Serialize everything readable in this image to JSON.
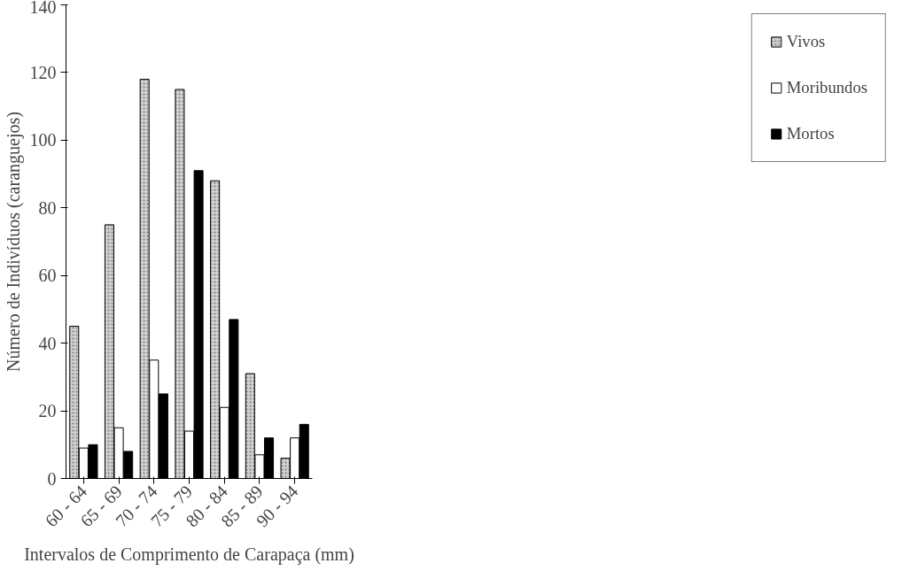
{
  "chart_data": {
    "type": "bar",
    "xlabel": "Intervalos de Comprimento de Carapaça (mm)",
    "ylabel": "Número de Indivíduos (caranguejos)",
    "categories": [
      "60 - 64",
      "65 - 69",
      "70 - 74",
      "75 - 79",
      "80 - 84",
      "85 - 89",
      "90 - 94"
    ],
    "series": [
      {
        "name": "Vivos",
        "color": "#d0d0d0",
        "values": [
          45,
          75,
          118,
          115,
          88,
          31,
          6
        ]
      },
      {
        "name": "Moribundos",
        "color": "#ffffff",
        "values": [
          9,
          15,
          35,
          14,
          21,
          7,
          12
        ]
      },
      {
        "name": "Mortos",
        "color": "#000000",
        "values": [
          10,
          8,
          25,
          91,
          47,
          12,
          16
        ]
      }
    ],
    "ylim": [
      0,
      140
    ],
    "yticks": [
      0,
      20,
      40,
      60,
      80,
      100,
      120,
      140
    ],
    "grid": false,
    "legend": "right"
  }
}
